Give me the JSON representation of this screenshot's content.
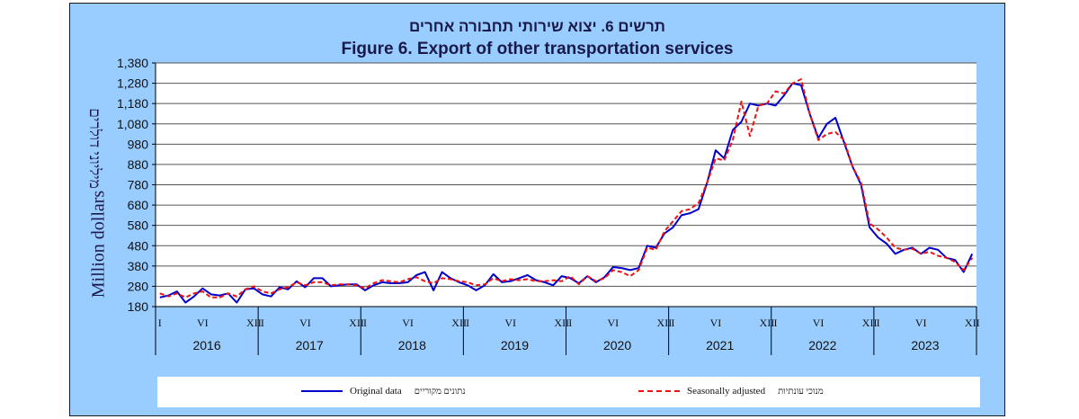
{
  "title_he": "תרשים 6. יצוא שירותי תחבורה אחרים",
  "title_en": "Figure 6. Export of other transportation services",
  "ylabel_he": "מיליוני דולרים",
  "ylabel_en": "Million dollars",
  "legend": {
    "original_en": "Original data",
    "original_he": "נתונים מקוריים",
    "seasonal_en": "Seasonally adjusted",
    "seasonal_he": "מנוכי עונתיות"
  },
  "colors": {
    "original": "#0000cc",
    "seasonal": "#ee1111",
    "plot_bg": "#ffffff",
    "frame_bg": "#99ccff"
  },
  "chart_data": {
    "type": "line",
    "title": "Figure 6. Export of other transportation services",
    "ylabel": "Million dollars",
    "xlabel": "",
    "ylim": [
      180,
      1380
    ],
    "yticks": [
      "180",
      "280",
      "380",
      "480",
      "580",
      "680",
      "780",
      "880",
      "980",
      "1,080",
      "1,180",
      "1,280",
      "1,380"
    ],
    "grid": true,
    "legend_position": "bottom",
    "years": [
      "2016",
      "2017",
      "2018",
      "2019",
      "2020",
      "2021",
      "2022",
      "2023"
    ],
    "month_ticks": [
      "I",
      "VI",
      "XII"
    ],
    "x": [
      "2016-01",
      "2016-02",
      "2016-03",
      "2016-04",
      "2016-05",
      "2016-06",
      "2016-07",
      "2016-08",
      "2016-09",
      "2016-10",
      "2016-11",
      "2016-12",
      "2017-01",
      "2017-02",
      "2017-03",
      "2017-04",
      "2017-05",
      "2017-06",
      "2017-07",
      "2017-08",
      "2017-09",
      "2017-10",
      "2017-11",
      "2017-12",
      "2018-01",
      "2018-02",
      "2018-03",
      "2018-04",
      "2018-05",
      "2018-06",
      "2018-07",
      "2018-08",
      "2018-09",
      "2018-10",
      "2018-11",
      "2018-12",
      "2019-01",
      "2019-02",
      "2019-03",
      "2019-04",
      "2019-05",
      "2019-06",
      "2019-07",
      "2019-08",
      "2019-09",
      "2019-10",
      "2019-11",
      "2019-12",
      "2020-01",
      "2020-02",
      "2020-03",
      "2020-04",
      "2020-05",
      "2020-06",
      "2020-07",
      "2020-08",
      "2020-09",
      "2020-10",
      "2020-11",
      "2020-12",
      "2021-01",
      "2021-02",
      "2021-03",
      "2021-04",
      "2021-05",
      "2021-06",
      "2021-07",
      "2021-08",
      "2021-09",
      "2021-10",
      "2021-11",
      "2021-12",
      "2022-01",
      "2022-02",
      "2022-03",
      "2022-04",
      "2022-05",
      "2022-06",
      "2022-07",
      "2022-08",
      "2022-09",
      "2022-10",
      "2022-11",
      "2022-12",
      "2023-01",
      "2023-02",
      "2023-03",
      "2023-04",
      "2023-05",
      "2023-06",
      "2023-07",
      "2023-08",
      "2023-09",
      "2023-10",
      "2023-11",
      "2023-12"
    ],
    "series": [
      {
        "name": "Original data",
        "values": [
          225,
          235,
          255,
          200,
          230,
          270,
          240,
          235,
          245,
          200,
          265,
          270,
          240,
          230,
          275,
          265,
          305,
          275,
          320,
          320,
          280,
          285,
          290,
          290,
          260,
          285,
          300,
          295,
          295,
          300,
          335,
          350,
          260,
          350,
          320,
          300,
          285,
          260,
          285,
          340,
          300,
          305,
          320,
          335,
          310,
          300,
          285,
          330,
          320,
          295,
          330,
          300,
          325,
          375,
          370,
          360,
          370,
          480,
          470,
          540,
          570,
          630,
          640,
          660,
          790,
          950,
          910,
          1050,
          1090,
          1180,
          1170,
          1180,
          1170,
          1220,
          1280,
          1270,
          1130,
          1010,
          1080,
          1110,
          990,
          870,
          780,
          570,
          520,
          490,
          440,
          460,
          470,
          440,
          470,
          460,
          420,
          410,
          350,
          440
        ]
      },
      {
        "name": "Seasonally adjusted",
        "values": [
          245,
          230,
          245,
          225,
          245,
          255,
          225,
          225,
          245,
          230,
          265,
          280,
          255,
          245,
          265,
          275,
          300,
          285,
          300,
          300,
          285,
          290,
          290,
          285,
          270,
          295,
          310,
          305,
          300,
          315,
          325,
          305,
          295,
          320,
          315,
          305,
          300,
          285,
          290,
          320,
          305,
          315,
          310,
          315,
          305,
          305,
          310,
          305,
          330,
          290,
          330,
          305,
          320,
          360,
          350,
          330,
          360,
          470,
          460,
          550,
          600,
          650,
          660,
          690,
          790,
          910,
          900,
          1000,
          1190,
          1020,
          1170,
          1180,
          1240,
          1230,
          1280,
          1300,
          1130,
          1000,
          1030,
          1040,
          1000,
          870,
          790,
          590,
          560,
          520,
          470,
          460,
          465,
          440,
          450,
          430,
          420,
          400,
          360,
          420
        ]
      }
    ]
  }
}
